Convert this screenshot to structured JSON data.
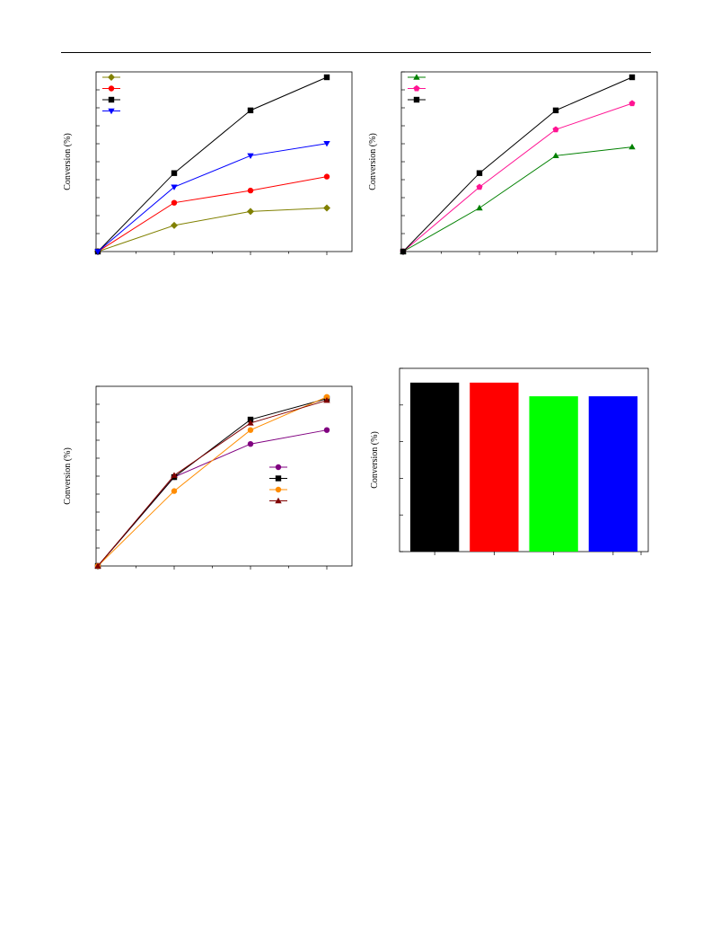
{
  "page": {
    "has_header_rule": true
  },
  "chart_data": [
    {
      "id": "panel-a",
      "type": "line",
      "title": "",
      "xlabel": "",
      "ylabel": "Conversion (%)",
      "x": [
        0,
        1,
        2,
        3
      ],
      "ylim": [
        0,
        100
      ],
      "grid": false,
      "legend": "top-left",
      "series": [
        {
          "color": "#808000",
          "marker": "diamond",
          "values": [
            0,
            15,
            23,
            25
          ]
        },
        {
          "color": "#ff0000",
          "marker": "circle",
          "values": [
            0,
            28,
            35,
            43
          ]
        },
        {
          "color": "#000000",
          "marker": "square",
          "values": [
            0,
            45,
            81,
            100
          ]
        },
        {
          "color": "#0000ff",
          "marker": "triangle-down",
          "values": [
            0,
            37,
            55,
            62
          ]
        }
      ]
    },
    {
      "id": "panel-b",
      "type": "line",
      "title": "",
      "xlabel": "",
      "ylabel": "Conversion (%)",
      "x": [
        0,
        1,
        2,
        3
      ],
      "ylim": [
        0,
        100
      ],
      "grid": false,
      "legend": "top-left",
      "series": [
        {
          "color": "#008000",
          "marker": "triangle-up",
          "values": [
            0,
            25,
            55,
            60
          ]
        },
        {
          "color": "#ff1493",
          "marker": "pentagon",
          "values": [
            0,
            37,
            70,
            85
          ]
        },
        {
          "color": "#000000",
          "marker": "square",
          "values": [
            0,
            45,
            81,
            100
          ]
        }
      ]
    },
    {
      "id": "panel-c",
      "type": "line",
      "title": "",
      "xlabel": "",
      "ylabel": "Conversion (%)",
      "x": [
        0,
        1,
        2,
        3
      ],
      "ylim": [
        0,
        100
      ],
      "grid": false,
      "legend": "center-right",
      "series": [
        {
          "color": "#800080",
          "marker": "circle",
          "values": [
            0,
            51,
            70,
            78
          ]
        },
        {
          "color": "#000000",
          "marker": "square",
          "values": [
            0,
            51,
            84,
            96
          ]
        },
        {
          "color": "#ff8c00",
          "marker": "circle",
          "values": [
            0,
            43,
            78,
            97
          ]
        },
        {
          "color": "#800000",
          "marker": "triangle-up",
          "values": [
            0,
            52,
            82,
            95
          ]
        }
      ]
    },
    {
      "id": "panel-d",
      "type": "bar",
      "title": "",
      "xlabel": "",
      "ylabel": "Conversion (%)",
      "ylim": [
        0,
        100
      ],
      "grid": false,
      "series": [
        {
          "values": [
            99,
            99,
            91,
            91
          ]
        }
      ],
      "colors": [
        "#000000",
        "#ff0000",
        "#00ff00",
        "#0000ff"
      ]
    }
  ]
}
